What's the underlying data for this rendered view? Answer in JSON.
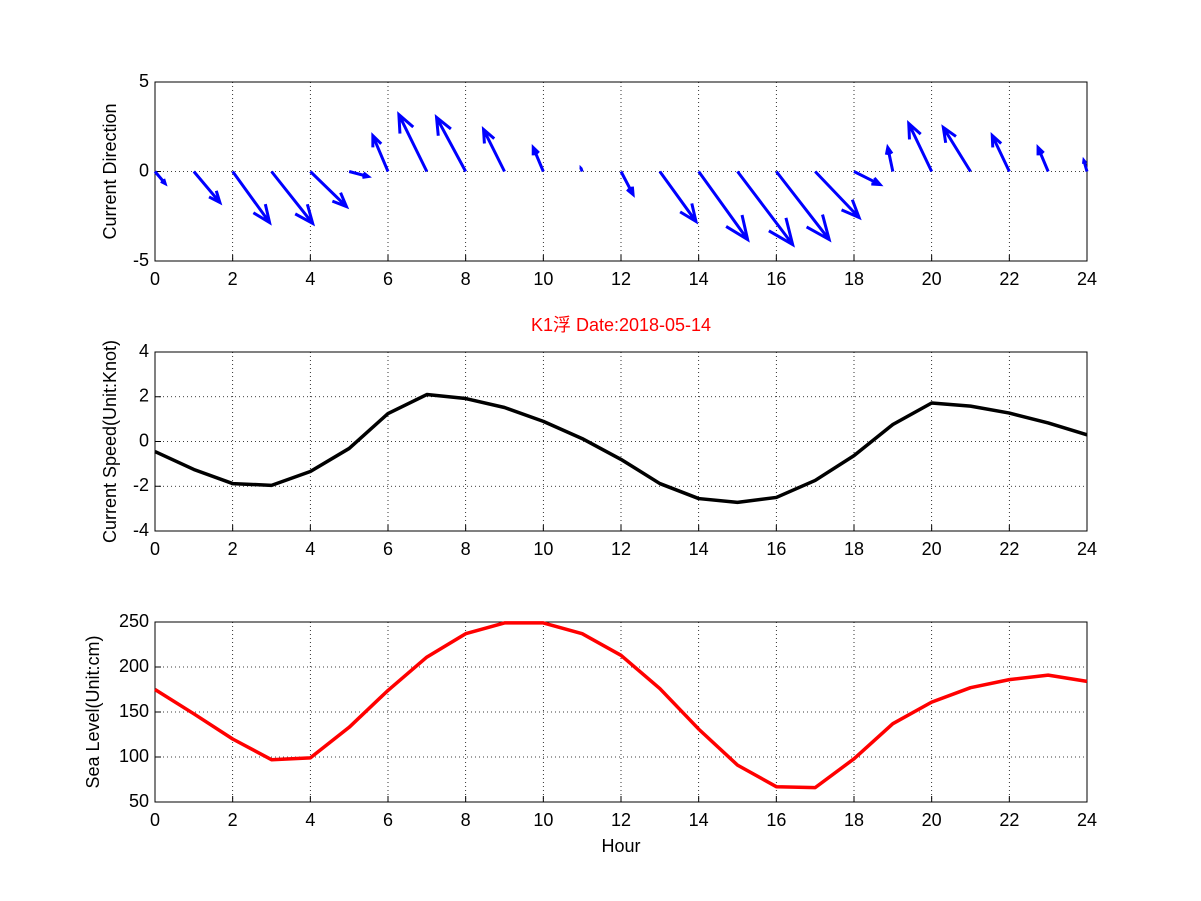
{
  "chart_data": [
    {
      "type": "quiver",
      "ylabel": "Current Direction",
      "color": "#0000ff",
      "grid": true,
      "x": [
        0,
        1,
        2,
        3,
        4,
        5,
        6,
        7,
        8,
        9,
        10,
        11,
        12,
        13,
        14,
        15,
        16,
        17,
        18,
        19,
        20,
        21,
        22,
        23,
        24
      ],
      "u": [
        0.26,
        0.67,
        0.95,
        1.06,
        0.93,
        0.49,
        -0.39,
        -0.72,
        -0.75,
        -0.54,
        -0.26,
        -0.03,
        0.31,
        0.93,
        1.26,
        1.42,
        1.36,
        1.13,
        0.67,
        -0.13,
        -0.59,
        -0.7,
        -0.44,
        -0.26,
        -0.08
      ],
      "v": [
        -0.67,
        -1.73,
        -2.85,
        -2.9,
        -1.96,
        -0.28,
        2.0,
        3.18,
        3.02,
        2.35,
        1.34,
        0.17,
        -1.28,
        -2.79,
        -3.8,
        -4.08,
        -3.8,
        -2.57,
        -0.73,
        1.34,
        2.68,
        2.46,
        2.01,
        1.34,
        0.61
      ],
      "xlim": [
        0,
        24
      ],
      "xticks": [
        0,
        2,
        4,
        6,
        8,
        10,
        12,
        14,
        16,
        18,
        20,
        22,
        24
      ],
      "ylim": [
        -5,
        5
      ],
      "yticks": [
        -5,
        0,
        5
      ]
    },
    {
      "type": "line",
      "title": "K1浮   Date:2018-05-14",
      "ylabel": "Current Speed(Unit:Knot)",
      "color": "#000000",
      "grid": true,
      "x": [
        0,
        1,
        2,
        3,
        4,
        5,
        6,
        7,
        8,
        9,
        10,
        11,
        12,
        13,
        14,
        15,
        16,
        17,
        18,
        19,
        20,
        21,
        22,
        23,
        24
      ],
      "values": [
        -0.45,
        -1.25,
        -1.88,
        -1.96,
        -1.34,
        -0.31,
        1.25,
        2.1,
        1.92,
        1.52,
        0.9,
        0.13,
        -0.8,
        -1.88,
        -2.55,
        -2.72,
        -2.5,
        -1.74,
        -0.63,
        0.76,
        1.72,
        1.58,
        1.27,
        0.83,
        0.3
      ],
      "xlim": [
        0,
        24
      ],
      "xticks": [
        0,
        2,
        4,
        6,
        8,
        10,
        12,
        14,
        16,
        18,
        20,
        22,
        24
      ],
      "ylim": [
        -4,
        4
      ],
      "yticks": [
        -4,
        -2,
        0,
        2,
        4
      ]
    },
    {
      "type": "line",
      "ylabel": "Sea Level(Unit:cm)",
      "xlabel": "Hour",
      "color": "#ff0000",
      "grid": true,
      "x": [
        0,
        1,
        2,
        3,
        4,
        5,
        6,
        7,
        8,
        9,
        10,
        11,
        12,
        13,
        14,
        15,
        16,
        17,
        18,
        19,
        20,
        21,
        22,
        23,
        24
      ],
      "values": [
        175,
        148,
        120,
        97,
        99,
        133,
        174,
        211,
        237,
        249,
        249,
        237,
        213,
        176,
        131,
        91,
        67,
        66,
        98,
        137,
        161,
        177,
        186,
        191,
        184
      ],
      "xlim": [
        0,
        24
      ],
      "xticks": [
        0,
        2,
        4,
        6,
        8,
        10,
        12,
        14,
        16,
        18,
        20,
        22,
        24
      ],
      "ylim": [
        50,
        250
      ],
      "yticks": [
        50,
        100,
        150,
        200,
        250
      ]
    }
  ]
}
